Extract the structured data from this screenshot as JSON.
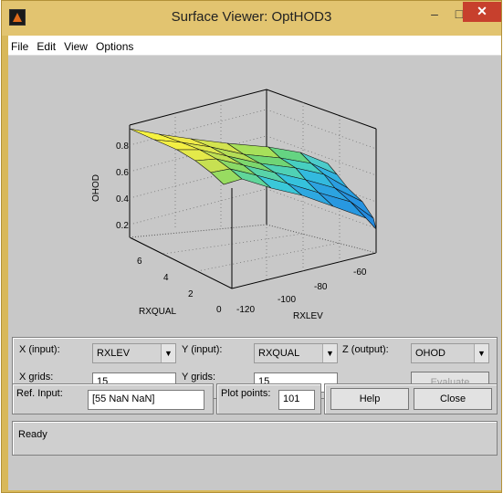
{
  "window": {
    "title": "Surface Viewer: OptHOD3",
    "minimize": "–",
    "maximize": "□",
    "close": "✕"
  },
  "menu": [
    "File",
    "Edit",
    "View",
    "Options"
  ],
  "plot": {
    "zlabel": "OHOD",
    "ylabel": "RXQUAL",
    "xlabel": "RXLEV",
    "zticks": [
      "0.8",
      "0.6",
      "0.4",
      "0.2"
    ],
    "yticks": [
      "6",
      "4",
      "2",
      "0"
    ],
    "xticks": [
      "-120",
      "-100",
      "-80",
      "-60"
    ],
    "colormap": [
      "#2a9ee0",
      "#3ac8d8",
      "#60d59a",
      "#a7e05a",
      "#e4e94a",
      "#f6f240"
    ]
  },
  "controls": {
    "x_input_label": "X (input):",
    "x_input_value": "RXLEV",
    "y_input_label": "Y (input):",
    "y_input_value": "RXQUAL",
    "z_output_label": "Z (output):",
    "z_output_value": "OHOD",
    "x_grids_label": "X grids:",
    "x_grids_value": "15",
    "y_grids_label": "Y grids:",
    "y_grids_value": "15",
    "evaluate_label": "Evaluate",
    "ref_input_label": "Ref. Input:",
    "ref_input_value": "[55 NaN NaN]",
    "plot_points_label": "Plot points:",
    "plot_points_value": "101",
    "help_label": "Help",
    "close_label": "Close"
  },
  "status": {
    "text": "Ready"
  }
}
